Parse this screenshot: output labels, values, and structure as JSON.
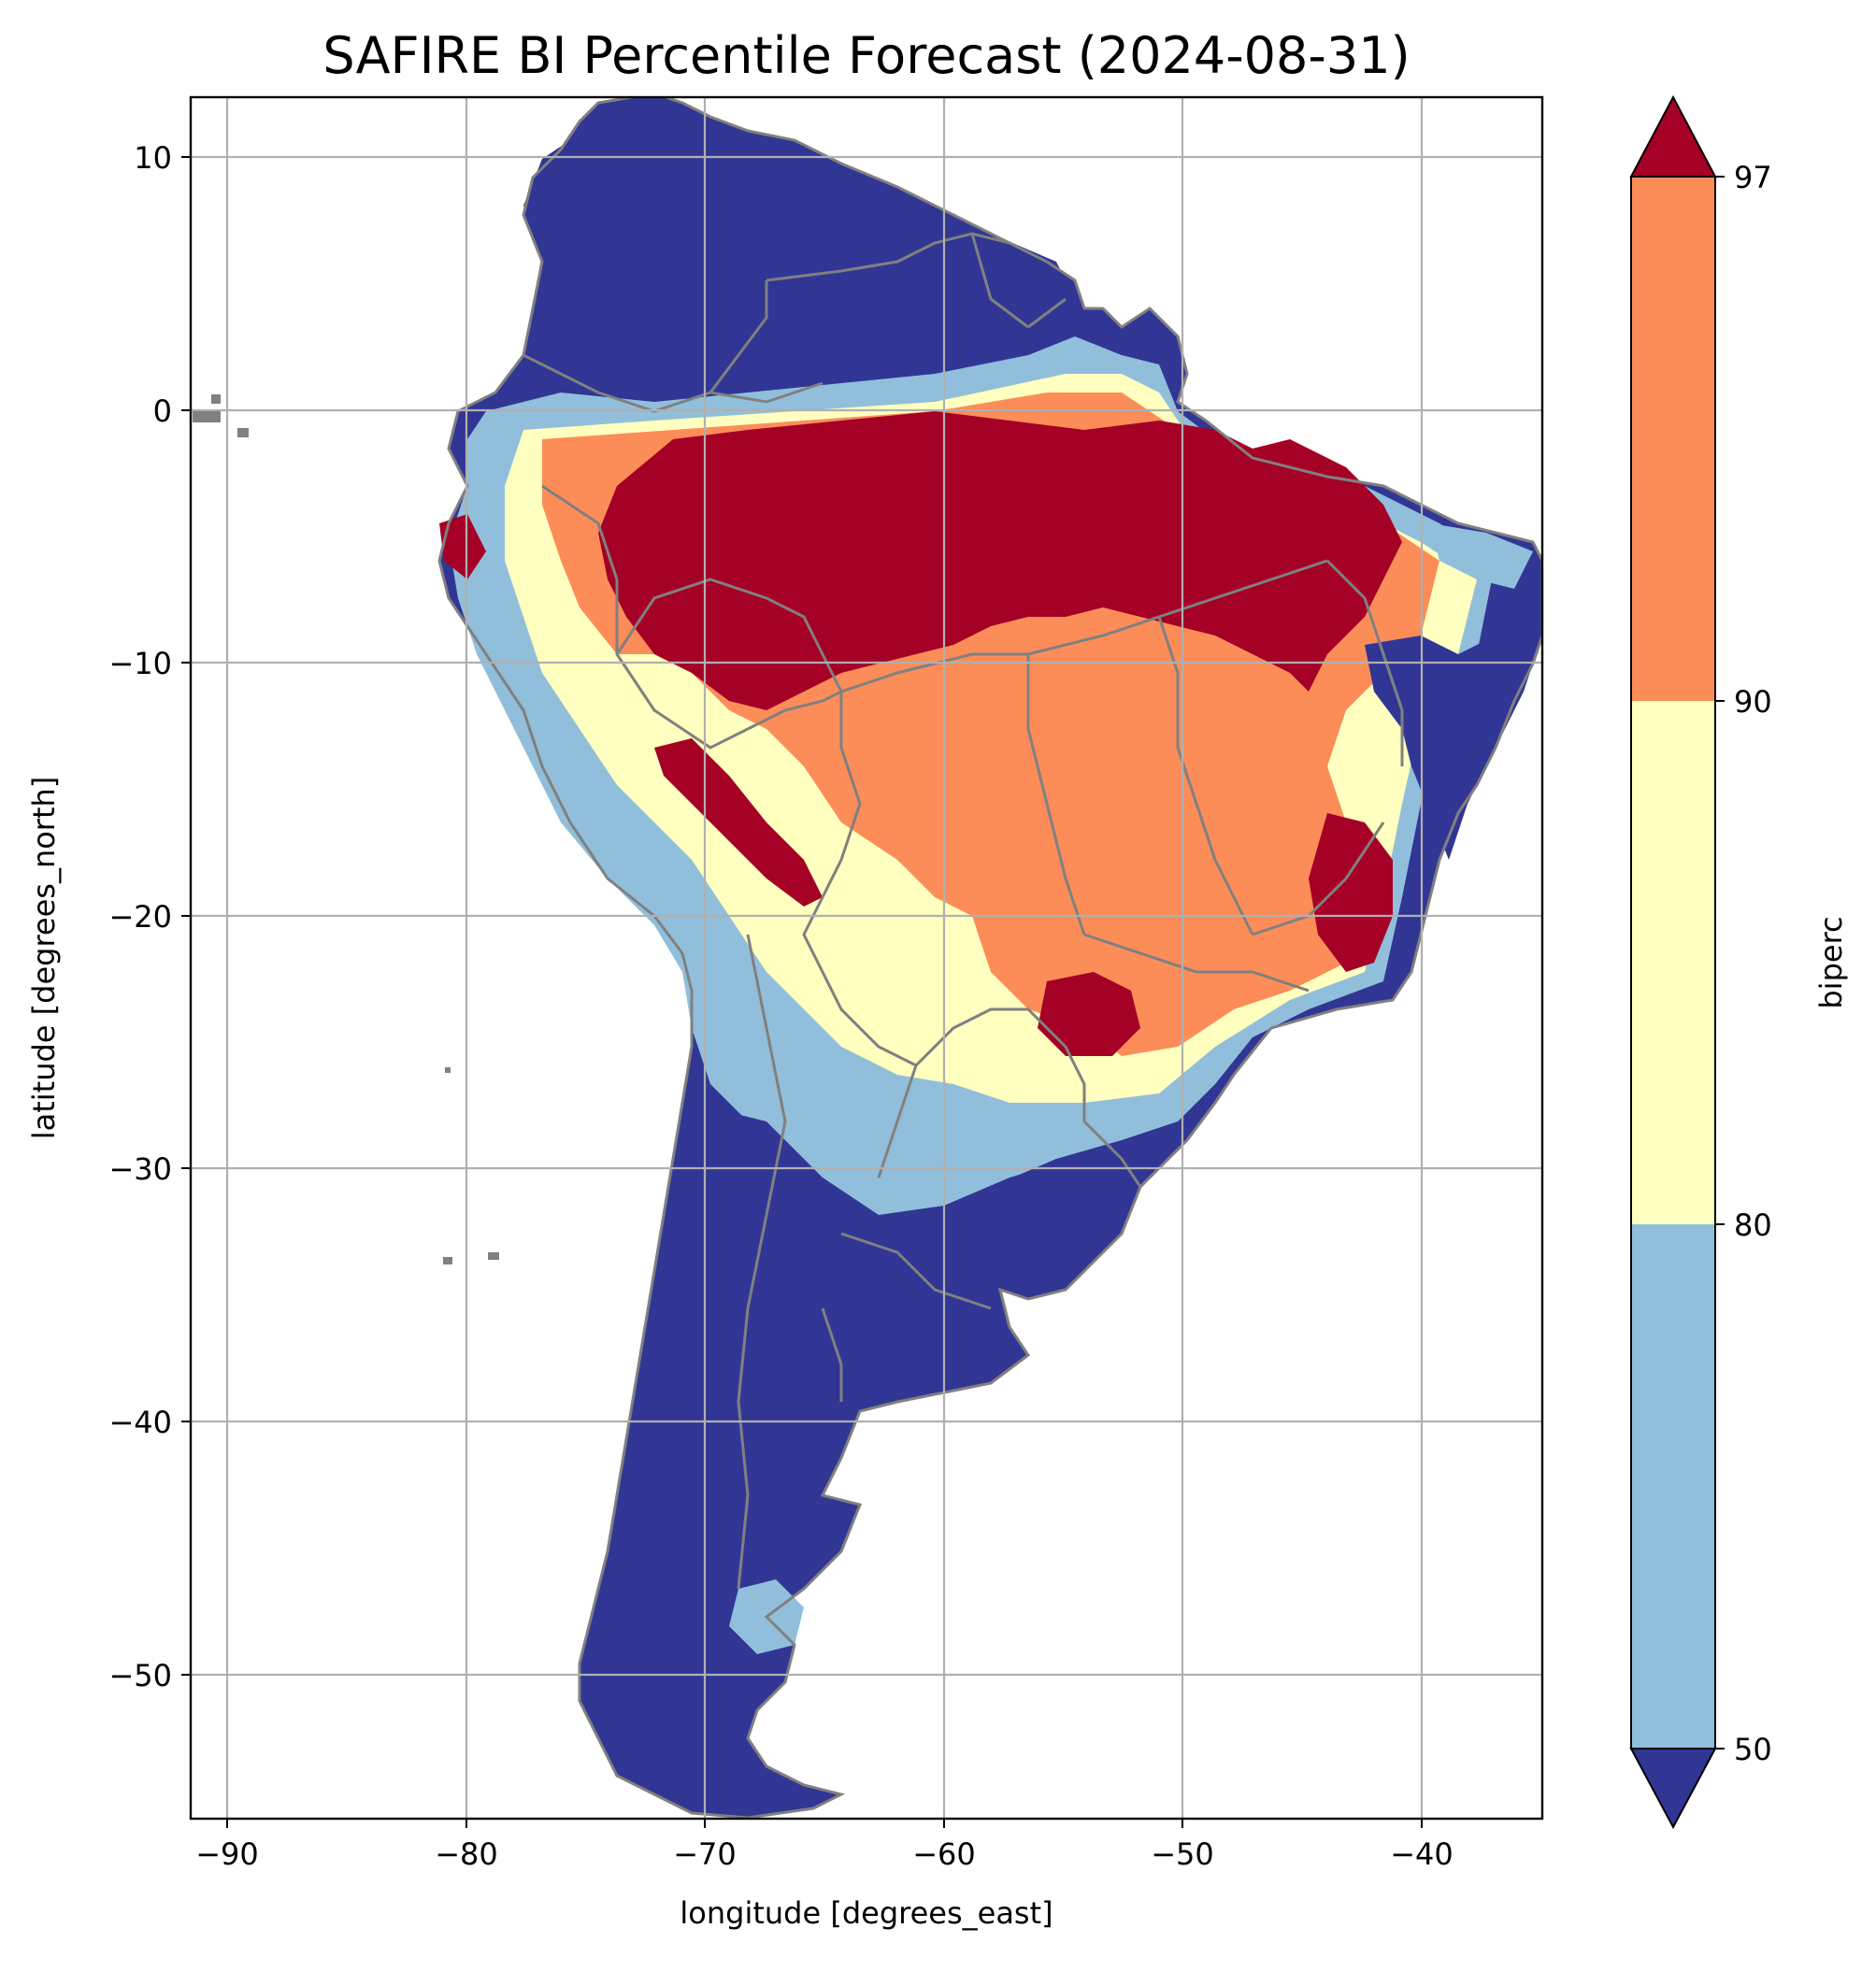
{
  "title": "SAFIRE BI Percentile Forecast (2024-08-31)",
  "xlabel": "longitude [degrees_east]",
  "ylabel": "latitude [degrees_north]",
  "colorbar_label": "biperc",
  "x_ticks": [
    -90,
    -80,
    -70,
    -60,
    -50,
    -40
  ],
  "y_ticks": [
    10,
    0,
    -10,
    -20,
    -30,
    -40,
    -50
  ],
  "x_tick_labels": [
    "−90",
    "−80",
    "−70",
    "−60",
    "−50",
    "−40"
  ],
  "y_tick_labels": [
    "10",
    "0",
    "−10",
    "−20",
    "−30",
    "−40",
    "−50"
  ],
  "colorbar": {
    "levels": [
      50,
      80,
      90,
      97
    ],
    "tick_labels": [
      "50",
      "80",
      "90",
      "97"
    ],
    "colors": {
      "under": "#313695",
      "50-80": "#91bfdb",
      "80-90": "#ffffbf",
      "90-97": "#fc8d59",
      "over": "#a50026"
    },
    "extend": "both"
  },
  "chart_data": {
    "type": "heatmap",
    "title": "SAFIRE BI Percentile Forecast (2024-08-31)",
    "xlabel": "longitude [degrees_east]",
    "ylabel": "latitude [degrees_north]",
    "xlim": [
      -91.6,
      -35
    ],
    "ylim": [
      -55.8,
      12.4
    ],
    "grid": true,
    "region": "South America",
    "zones": [
      {
        "area": "Northern South America (Colombia, Venezuela, Guianas)",
        "class": "<50"
      },
      {
        "area": "Amazon basin and northern Brazil",
        "class": ">97"
      },
      {
        "area": "Central Brazil",
        "class": "90-97"
      },
      {
        "area": "Bolivia / Paraguay / western Brazil",
        "class": "80-90"
      },
      {
        "area": "Eastern Brazil coast",
        "class": "<50"
      },
      {
        "area": "Northern Argentina / Paraguay patches",
        "class": "50-80"
      },
      {
        "area": "Southern Brazil",
        "class": "90-97"
      },
      {
        "area": "Argentina, Chile, Uruguay, Patagonia",
        "class": "<50"
      }
    ]
  }
}
